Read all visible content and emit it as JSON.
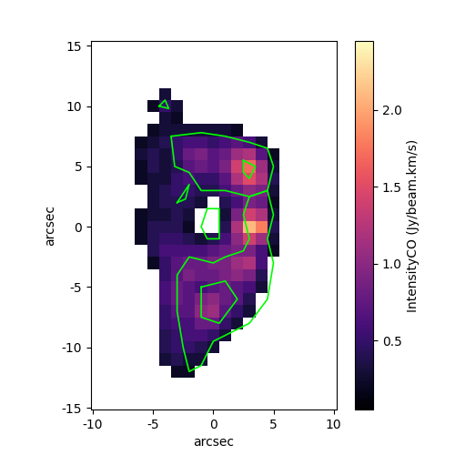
{
  "chart_data": {
    "type": "heatmap",
    "xlabel": "arcsec",
    "ylabel": "arcsec",
    "colorbar_label": "IntensityCO (Jy/beam.km/s)",
    "xlim": [
      -10.15,
      10.25
    ],
    "xticks": [
      -10,
      -5,
      0,
      5,
      10
    ],
    "ylim": [
      -15.15,
      15.4
    ],
    "yticks": [
      -15,
      -10,
      -5,
      0,
      5,
      10,
      15
    ],
    "x": [
      -6,
      -5,
      -4,
      -3,
      -2,
      -1,
      0,
      1,
      2,
      3,
      4,
      5
    ],
    "y": [
      12,
      11,
      10,
      9,
      8,
      7,
      6,
      5,
      4,
      3,
      2,
      1,
      0,
      -1,
      -2,
      -3,
      -4,
      -5,
      -6,
      -7,
      -8,
      -9,
      -10,
      -11,
      -12,
      -13
    ],
    "cells": [
      [
        null,
        null,
        null,
        null,
        null,
        null,
        null,
        null,
        null,
        null,
        null,
        null
      ],
      [
        null,
        null,
        0.3,
        null,
        null,
        null,
        null,
        null,
        null,
        null,
        null,
        null
      ],
      [
        null,
        0.2,
        0.5,
        0.3,
        null,
        null,
        null,
        null,
        null,
        null,
        null,
        null
      ],
      [
        null,
        null,
        0.3,
        0.2,
        null,
        null,
        null,
        null,
        null,
        null,
        null,
        null
      ],
      [
        null,
        0.2,
        0.3,
        0.3,
        0.3,
        0.3,
        0.3,
        0.3,
        0.2,
        null,
        null,
        null
      ],
      [
        0.2,
        0.3,
        0.4,
        0.5,
        0.6,
        0.6,
        0.5,
        0.6,
        0.7,
        0.6,
        0.3,
        null
      ],
      [
        0.3,
        0.4,
        0.3,
        0.5,
        0.8,
        0.9,
        0.7,
        0.8,
        1.1,
        1.2,
        0.7,
        0.2
      ],
      [
        0.2,
        0.4,
        0.3,
        0.4,
        0.7,
        0.8,
        0.7,
        0.9,
        1.4,
        1.7,
        1.1,
        0.3
      ],
      [
        0.2,
        0.3,
        0.3,
        0.5,
        0.6,
        0.5,
        0.5,
        0.7,
        1.2,
        1.5,
        1.2,
        0.4
      ],
      [
        null,
        0.3,
        0.4,
        0.5,
        0.5,
        0.4,
        0.4,
        0.6,
        0.8,
        1.0,
        0.9,
        0.3
      ],
      [
        null,
        0.3,
        0.4,
        0.4,
        0.4,
        0.3,
        null,
        0.4,
        0.6,
        0.9,
        0.8,
        0.2
      ],
      [
        0.2,
        0.3,
        0.3,
        0.4,
        0.3,
        null,
        null,
        0.3,
        0.9,
        1.4,
        1.2,
        0.3
      ],
      [
        0.2,
        0.4,
        0.4,
        0.4,
        0.2,
        null,
        null,
        0.4,
        1.2,
        2.1,
        1.8,
        0.4
      ],
      [
        0.2,
        0.4,
        0.5,
        0.5,
        0.4,
        0.3,
        0.4,
        0.6,
        1.0,
        1.4,
        1.1,
        0.3
      ],
      [
        null,
        0.4,
        0.6,
        0.6,
        0.6,
        0.6,
        0.7,
        0.8,
        0.9,
        0.9,
        0.6,
        0.2
      ],
      [
        null,
        0.2,
        0.5,
        0.7,
        0.8,
        0.8,
        0.9,
        0.9,
        1.1,
        1.2,
        0.6,
        null
      ],
      [
        null,
        null,
        0.5,
        0.7,
        0.9,
        0.8,
        0.8,
        0.9,
        1.0,
        0.9,
        0.4,
        null
      ],
      [
        null,
        null,
        0.6,
        0.8,
        0.7,
        0.6,
        0.7,
        0.8,
        0.7,
        0.6,
        0.3,
        null
      ],
      [
        null,
        null,
        0.6,
        0.8,
        0.7,
        0.9,
        1.0,
        0.8,
        0.7,
        0.4,
        null,
        null
      ],
      [
        null,
        null,
        0.5,
        0.7,
        0.7,
        1.0,
        1.1,
        0.7,
        0.5,
        0.3,
        null,
        null
      ],
      [
        null,
        null,
        0.5,
        0.6,
        0.6,
        0.8,
        0.8,
        0.5,
        0.3,
        null,
        null,
        null
      ],
      [
        null,
        null,
        0.4,
        0.5,
        0.6,
        0.6,
        0.5,
        0.3,
        null,
        null,
        null,
        null
      ],
      [
        null,
        null,
        0.4,
        0.5,
        0.5,
        0.4,
        0.3,
        null,
        null,
        null,
        null,
        null
      ],
      [
        null,
        null,
        0.3,
        0.4,
        0.3,
        0.3,
        null,
        null,
        null,
        null,
        null,
        null
      ],
      [
        null,
        null,
        null,
        0.2,
        0.2,
        null,
        null,
        null,
        null,
        null,
        null,
        null
      ],
      [
        null,
        null,
        null,
        null,
        null,
        null,
        null,
        null,
        null,
        null,
        null,
        null
      ]
    ],
    "colorbar_range": [
      0.05,
      2.45
    ],
    "colorbar_ticks": [
      0.5,
      {
        "value": 1.0,
        "label": "1.0"
      },
      1.5,
      {
        "value": 2.0,
        "label": "2.0"
      }
    ],
    "color": "#00ff00",
    "contours": [
      {
        "x": [
          -3.5,
          -1,
          1,
          3,
          4.5,
          5,
          4.5,
          3,
          1,
          -1,
          -2,
          -3.2,
          -3.5
        ],
        "y": [
          7.5,
          7.8,
          7.5,
          7,
          6.5,
          5,
          3,
          2.5,
          3,
          3,
          4.5,
          5,
          7.5
        ]
      },
      {
        "x": [
          4.5,
          5,
          4.5,
          5,
          4.5,
          3,
          0,
          -1,
          -2,
          -2.5,
          -3,
          -3,
          -2,
          0,
          1,
          2.5,
          3,
          2.5,
          3,
          4.5
        ],
        "y": [
          3,
          1,
          -1,
          -3,
          -6,
          -8,
          -9.5,
          -11.5,
          -12,
          -10,
          -7,
          -4,
          -2.5,
          -3,
          -2.5,
          -2,
          -1,
          1,
          2.5,
          3
        ]
      },
      {
        "x": [
          -0.5,
          0.5,
          0.5,
          -0.5,
          -1,
          -0.5
        ],
        "y": [
          1.5,
          1.5,
          -1,
          -1,
          0,
          1.5
        ]
      },
      {
        "x": [
          -4.5,
          -4,
          -3.7,
          -4.5
        ],
        "y": [
          10,
          10.5,
          9.8,
          10
        ]
      },
      {
        "x": [
          -3,
          -2,
          -2.3,
          -3
        ],
        "y": [
          2,
          3.5,
          2.3,
          2
        ]
      },
      {
        "x": [
          2.5,
          3.5,
          3,
          2.5,
          2.5
        ],
        "y": [
          5.5,
          5,
          4,
          4.5,
          5.5
        ]
      },
      {
        "x": [
          -1,
          1,
          2,
          0.5,
          -1,
          -1
        ],
        "y": [
          -5,
          -4.5,
          -6,
          -8,
          -7.5,
          -5
        ]
      }
    ]
  }
}
